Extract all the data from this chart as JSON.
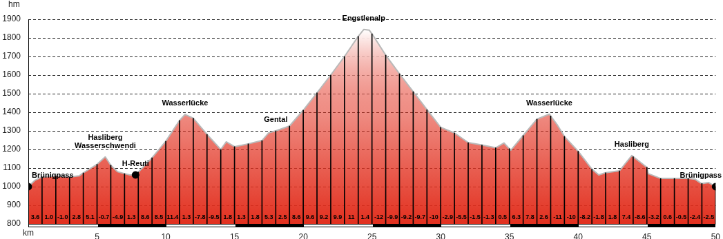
{
  "chart_data": {
    "type": "area",
    "xlabel": "km",
    "ylabel": "hm",
    "xlim": [
      0,
      50
    ],
    "xticks": [
      5,
      10,
      15,
      20,
      25,
      30,
      35,
      40,
      45,
      50
    ],
    "ylim": [
      800,
      1900
    ],
    "yticks": [
      800,
      900,
      1000,
      1100,
      1200,
      1300,
      1400,
      1500,
      1600,
      1700,
      1800,
      1900
    ],
    "grid": "y",
    "legend": false,
    "line_style": "solid",
    "series": [
      {
        "type": "area",
        "color": "#e2301f",
        "x": [
          0,
          0.5,
          1,
          2,
          3,
          3.7,
          4,
          5,
          5.6,
          6,
          6.5,
          7,
          7.4,
          7.8,
          8,
          9,
          10,
          11,
          11.4,
          12,
          13,
          14,
          14.4,
          15,
          16,
          17,
          17.5,
          18,
          19,
          20,
          21,
          22,
          23,
          24,
          24.4,
          24.8,
          25,
          26,
          27,
          28,
          29,
          30,
          31,
          32,
          33,
          34,
          34.6,
          35.1,
          36,
          37,
          37.9,
          38.5,
          39,
          40,
          41,
          41.5,
          42,
          43,
          43.9,
          45,
          45.1,
          46,
          47,
          48,
          48.5,
          48.9,
          49,
          49.5,
          50
        ],
        "values": [
          1000,
          1035,
          1052,
          1057,
          1052,
          1058,
          1074,
          1120,
          1160,
          1115,
          1080,
          1070,
          1063,
          1063,
          1078,
          1155,
          1244,
          1356,
          1388,
          1368,
          1281,
          1200,
          1241,
          1215,
          1230,
          1248,
          1290,
          1300,
          1326,
          1411,
          1504,
          1600,
          1700,
          1808,
          1845,
          1842,
          1822,
          1707,
          1607,
          1511,
          1414,
          1319,
          1289,
          1237,
          1224,
          1209,
          1235,
          1196,
          1275,
          1363,
          1390,
          1330,
          1270,
          1190,
          1094,
          1063,
          1075,
          1085,
          1167,
          1104,
          1070,
          1044,
          1044,
          1044,
          1040,
          1020,
          1017,
          1022,
          1000
        ]
      },
      {
        "type": "bar",
        "color": "#000000",
        "x": [
          1,
          2,
          3,
          4,
          5,
          6,
          7,
          8,
          9,
          10,
          11,
          12,
          13,
          14,
          15,
          16,
          17,
          18,
          19,
          20,
          21,
          22,
          23,
          24,
          25,
          26,
          27,
          28,
          29,
          30,
          31,
          32,
          33,
          34,
          35,
          36,
          37,
          38,
          39,
          40,
          41,
          42,
          43,
          44,
          45,
          46,
          47,
          48,
          49,
          50
        ],
        "values": [
          1052,
          1057,
          1052,
          1074,
          1120,
          1115,
          1070,
          1078,
          1155,
          1244,
          1356,
          1368,
          1281,
          1200,
          1215,
          1230,
          1248,
          1300,
          1326,
          1411,
          1504,
          1600,
          1700,
          1808,
          1822,
          1707,
          1607,
          1511,
          1414,
          1319,
          1289,
          1237,
          1224,
          1209,
          1204,
          1275,
          1363,
          1380,
          1270,
          1190,
          1094,
          1075,
          1085,
          1161,
          1104,
          1044,
          1044,
          1044,
          1017,
          1000
        ]
      },
      {
        "type": "scatter",
        "color": "#000000",
        "marker": "circle",
        "x": [
          0,
          7.8,
          50
        ],
        "values": [
          1000,
          1063,
          1000
        ]
      }
    ],
    "annotations": [
      {
        "text": "Brünigpass",
        "x": 0,
        "y": 1000
      },
      {
        "text": "Hasliberg Wasserschwendi",
        "x": 5.6,
        "y": 1160
      },
      {
        "text": "H-Reuti",
        "x": 7.8,
        "y": 1063
      },
      {
        "text": "Wasserlücke",
        "x": 11.4,
        "y": 1388
      },
      {
        "text": "Gental",
        "x": 18,
        "y": 1300
      },
      {
        "text": "Engstlenalp",
        "x": 24.4,
        "y": 1845
      },
      {
        "text": "Wasserlücke",
        "x": 37.9,
        "y": 1390
      },
      {
        "text": "Hasliberg",
        "x": 43.9,
        "y": 1167
      },
      {
        "text": "Brünigpass",
        "x": 50,
        "y": 1000
      },
      "3.6",
      "1.0",
      "-1.0",
      "2.8",
      "5.1",
      "-0.7",
      "-4.9",
      "1.3",
      "8.6",
      "8.5",
      "11.4",
      "1.3",
      "-7.8",
      "-9.5",
      "1.8",
      "1.3",
      "1.8",
      "5.3",
      "2.5",
      "8.6",
      "9.6",
      "9.2",
      "9.9",
      "11",
      "1.4",
      "-12",
      "-9.9",
      "-9.2",
      "-9.7",
      "-10",
      "-2.9",
      "-5.5",
      "-1.5",
      "-1.3",
      "0.5",
      "6.3",
      "7.8",
      "2.6",
      "-11",
      "-10",
      "-8.2",
      "-1.8",
      "1.8",
      "7.4",
      "-8.6",
      "-3.2",
      "0.6",
      "-0.5",
      "-2.4",
      "-2.5"
    ]
  }
}
